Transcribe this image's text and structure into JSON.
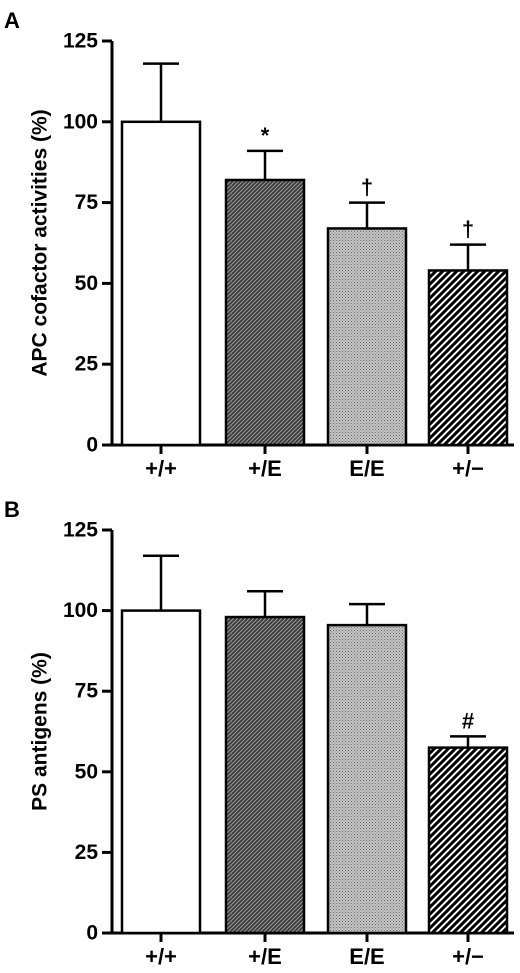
{
  "chart_data": [
    {
      "type": "bar",
      "panel": "A",
      "ylabel": "APC cofactor activities (%)",
      "categories": [
        "+/+",
        "+/E",
        "E/E",
        "+/−"
      ],
      "values": [
        100,
        82,
        67,
        54
      ],
      "errors": [
        18,
        9,
        8,
        8
      ],
      "annotations": [
        "",
        "*",
        "†",
        "†"
      ],
      "fills": [
        "white",
        "hatch-dark",
        "hatch-light",
        "hatch-diagonal"
      ],
      "ylim": [
        0,
        125
      ],
      "yticks": [
        0,
        25,
        50,
        75,
        100,
        125
      ]
    },
    {
      "type": "bar",
      "panel": "B",
      "ylabel": "PS antigens (%)",
      "categories": [
        "+/+",
        "+/E",
        "E/E",
        "+/−"
      ],
      "values": [
        100,
        98,
        95.5,
        57.5
      ],
      "errors": [
        17,
        8,
        6.5,
        3.5
      ],
      "annotations": [
        "",
        "",
        "",
        "#"
      ],
      "fills": [
        "white",
        "hatch-dark",
        "hatch-light",
        "hatch-diagonal"
      ],
      "ylim": [
        0,
        125
      ],
      "yticks": [
        0,
        25,
        50,
        75,
        100,
        125
      ]
    }
  ]
}
